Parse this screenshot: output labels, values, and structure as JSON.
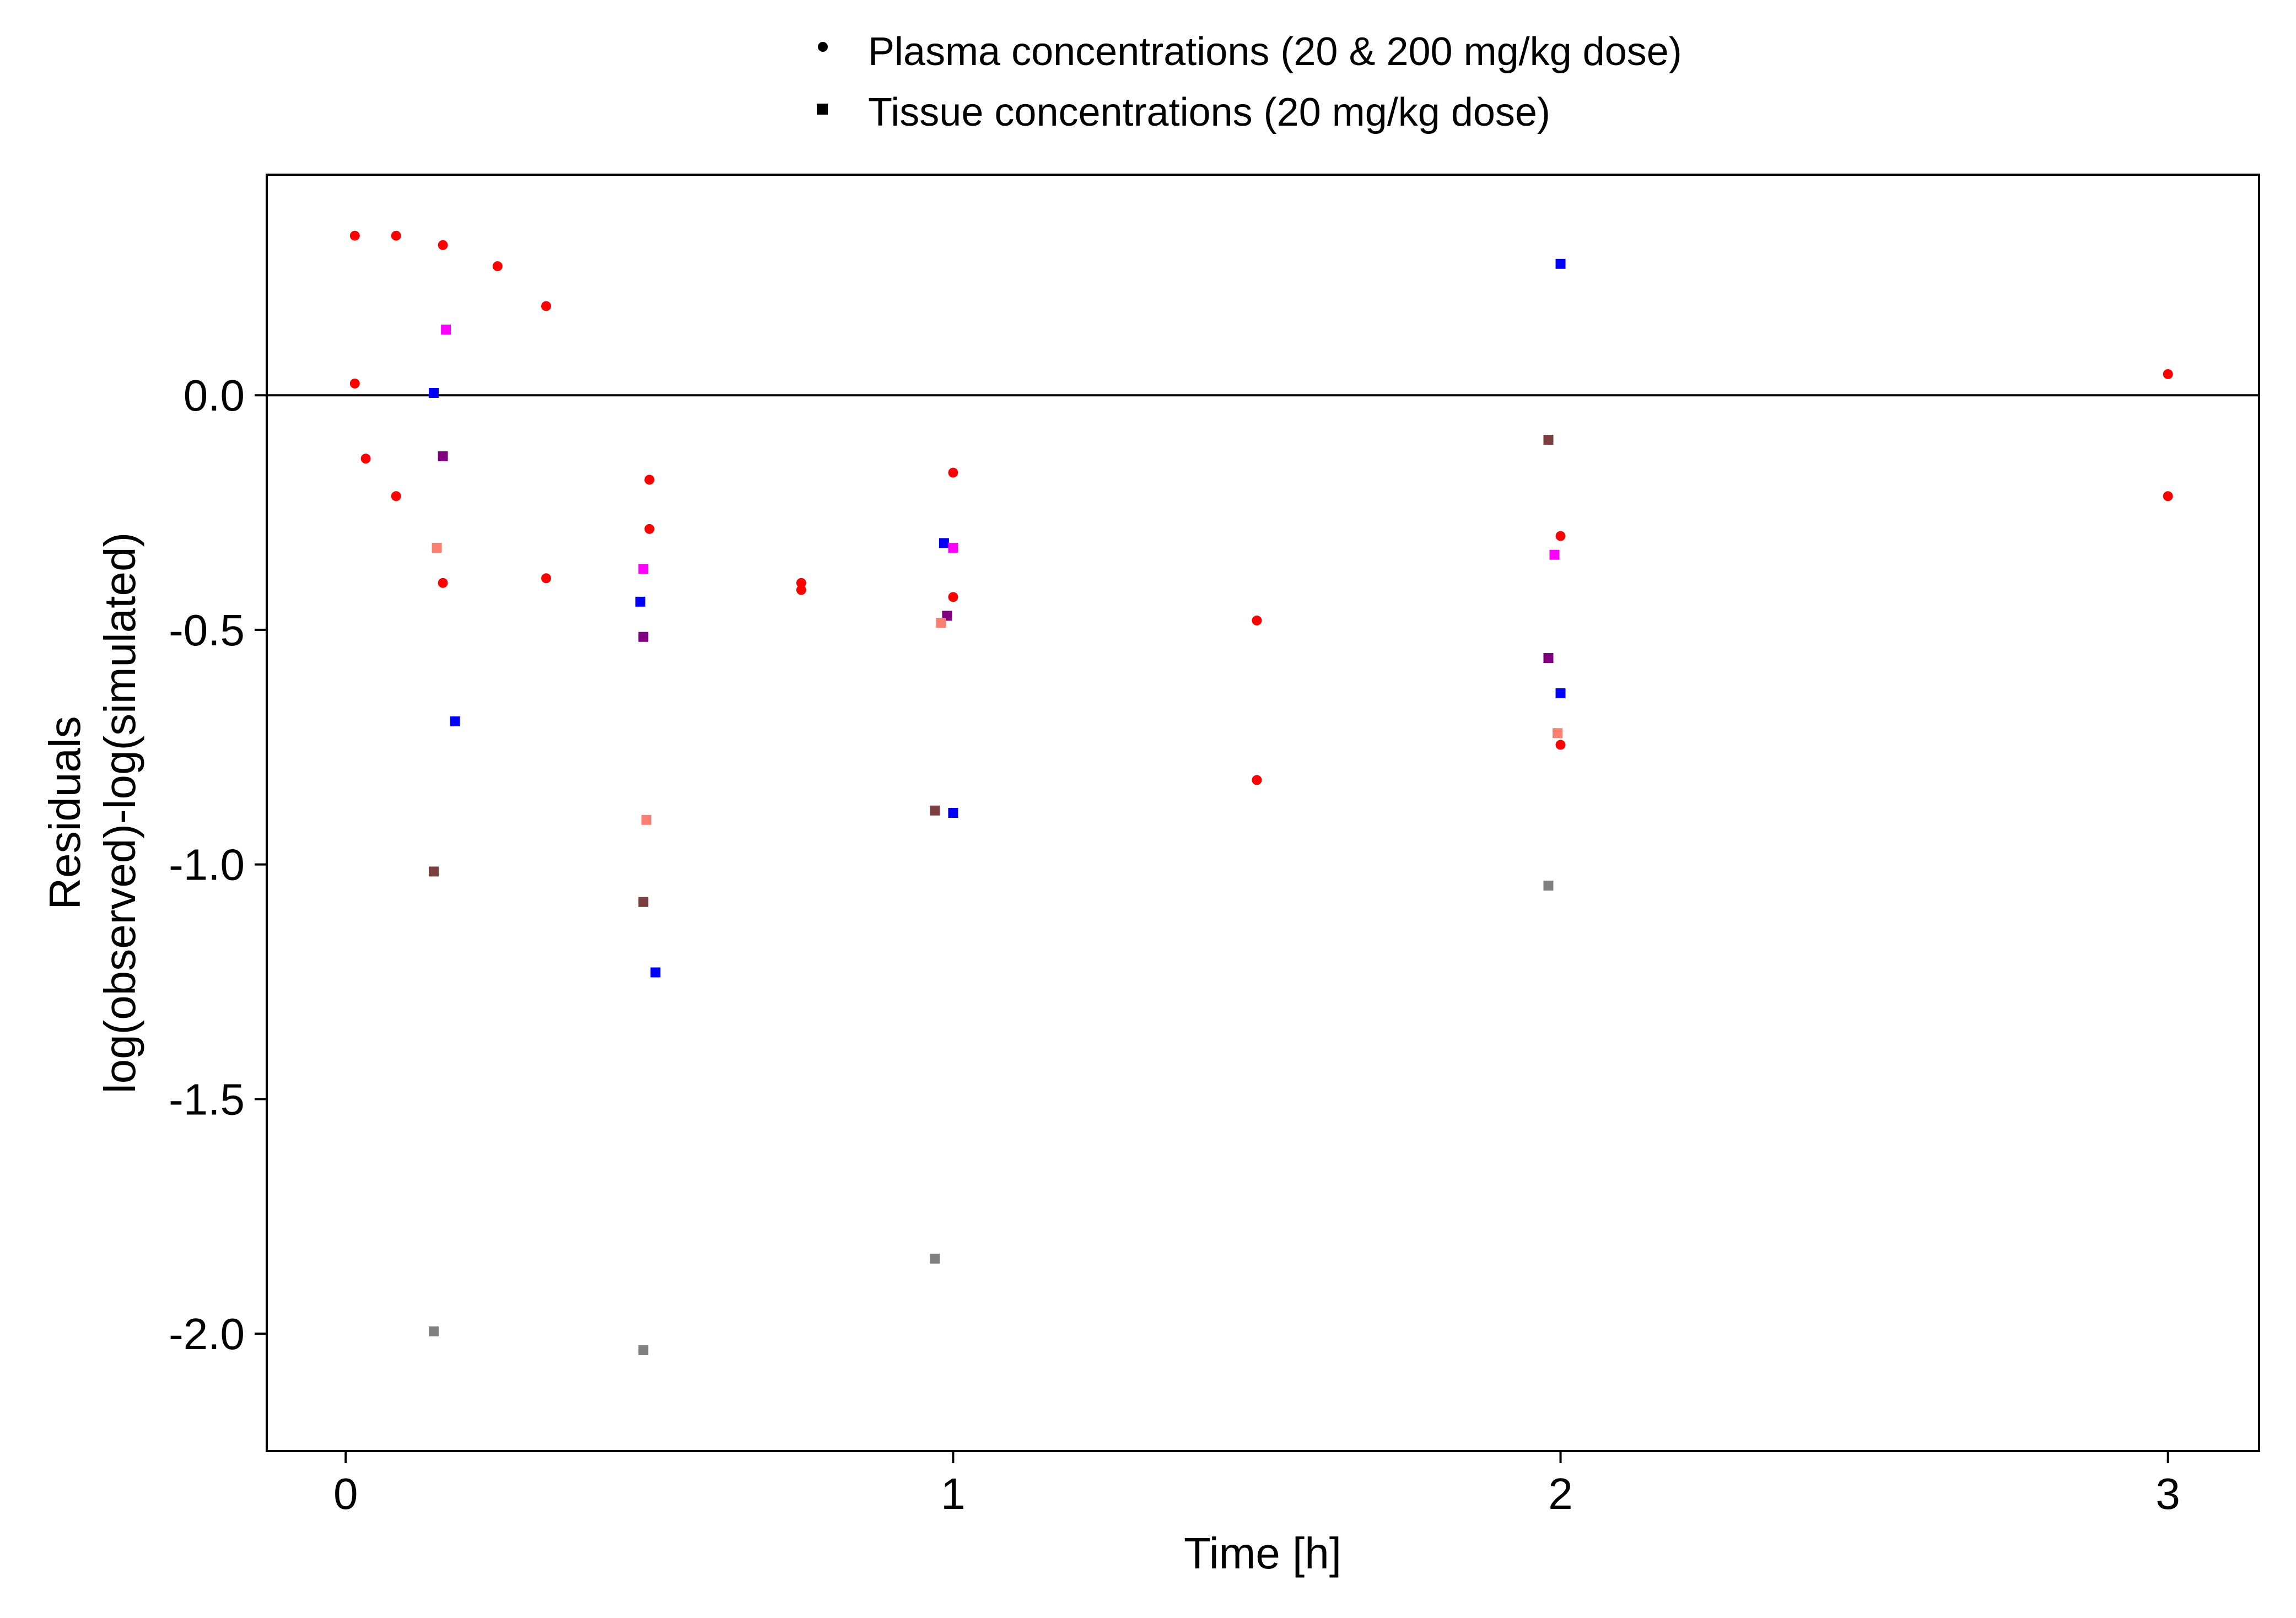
{
  "chart_data": {
    "type": "scatter",
    "xlabel": "Time [h]",
    "ylabel_lines": [
      "Residuals",
      "log(observed)-log(simulated)"
    ],
    "xlim": [
      -0.13,
      3.15
    ],
    "ylim": [
      -2.25,
      0.47
    ],
    "x_ticks": [
      0,
      1,
      2,
      3
    ],
    "x_tick_labels": [
      "0",
      "1",
      "2",
      "3"
    ],
    "y_ticks": [
      0.0,
      -0.5,
      -1.0,
      -1.5,
      -2.0
    ],
    "y_tick_labels": [
      "0.0",
      "-0.5",
      "-1.0",
      "-1.5",
      "-2.0"
    ],
    "reference_line_y": 0,
    "grid": false,
    "legend_position": "top-center",
    "legend": [
      {
        "label": "Plasma concentrations (20 & 200 mg/kg dose)",
        "shape": "circle"
      },
      {
        "label": "Tissue concentrations (20 mg/kg dose)",
        "shape": "square"
      }
    ],
    "series": [
      {
        "shape": "circle",
        "color": "#ff0000",
        "points": [
          [
            0.015,
            0.34
          ],
          [
            0.083,
            0.34
          ],
          [
            0.16,
            0.32
          ],
          [
            0.25,
            0.275
          ],
          [
            0.33,
            0.19
          ],
          [
            0.015,
            0.025
          ],
          [
            0.033,
            -0.135
          ],
          [
            0.083,
            -0.215
          ],
          [
            0.16,
            -0.4
          ],
          [
            0.33,
            -0.39
          ],
          [
            0.5,
            -0.18
          ],
          [
            0.5,
            -0.285
          ],
          [
            0.75,
            -0.4
          ],
          [
            0.75,
            -0.415
          ],
          [
            1.0,
            -0.165
          ],
          [
            1.0,
            -0.43
          ],
          [
            1.5,
            -0.48
          ],
          [
            1.5,
            -0.82
          ],
          [
            2.0,
            -0.3
          ],
          [
            2.0,
            -0.745
          ],
          [
            3.0,
            0.045
          ],
          [
            3.0,
            -0.215
          ]
        ]
      },
      {
        "shape": "square",
        "color": "#0000ff",
        "points": [
          [
            0.145,
            0.005
          ],
          [
            0.18,
            -0.695
          ],
          [
            0.485,
            -0.44
          ],
          [
            0.51,
            -1.23
          ],
          [
            0.985,
            -0.315
          ],
          [
            1.0,
            -0.89
          ],
          [
            2.0,
            0.28
          ],
          [
            2.0,
            -0.635
          ]
        ]
      },
      {
        "shape": "square",
        "color": "#ff00ff",
        "points": [
          [
            0.165,
            0.14
          ],
          [
            0.49,
            -0.37
          ],
          [
            1.0,
            -0.325
          ],
          [
            1.99,
            -0.34
          ]
        ]
      },
      {
        "shape": "square",
        "color": "#800080",
        "points": [
          [
            0.16,
            -0.13
          ],
          [
            0.49,
            -0.515
          ],
          [
            0.99,
            -0.47
          ],
          [
            1.98,
            -0.56
          ]
        ]
      },
      {
        "shape": "square",
        "color": "#fa8072",
        "points": [
          [
            0.15,
            -0.325
          ],
          [
            0.495,
            -0.905
          ],
          [
            0.98,
            -0.485
          ],
          [
            1.995,
            -0.72
          ]
        ]
      },
      {
        "shape": "square",
        "color": "#7b3f3f",
        "points": [
          [
            0.145,
            -1.015
          ],
          [
            0.49,
            -1.08
          ],
          [
            0.97,
            -0.885
          ],
          [
            1.98,
            -0.095
          ]
        ]
      },
      {
        "shape": "square",
        "color": "#808080",
        "points": [
          [
            0.145,
            -1.995
          ],
          [
            0.49,
            -2.035
          ],
          [
            0.97,
            -1.84
          ],
          [
            1.98,
            -1.045
          ]
        ]
      }
    ]
  }
}
